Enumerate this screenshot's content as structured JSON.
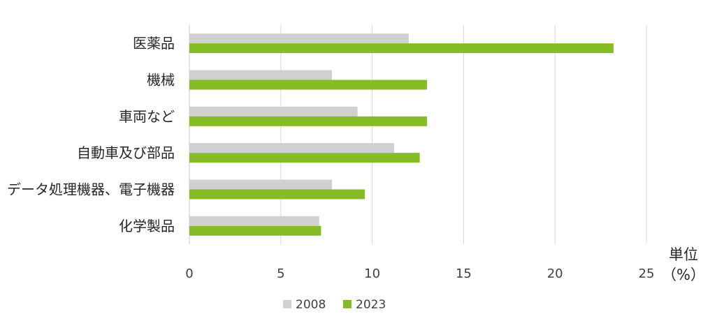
{
  "chart_data": {
    "type": "bar",
    "orientation": "horizontal",
    "title": "",
    "xlabel": "",
    "ylabel": "",
    "unit_label": [
      "単位",
      "（%）"
    ],
    "categories": [
      "医薬品",
      "機械",
      "車両など",
      "自動車及び部品",
      "データ処理機器、電子機器",
      "化学製品"
    ],
    "series": [
      {
        "name": "2008",
        "color": "#d0d0d0",
        "values": [
          12.0,
          7.8,
          9.2,
          11.2,
          7.8,
          7.1
        ]
      },
      {
        "name": "2023",
        "color": "#86bc25",
        "values": [
          23.2,
          13.0,
          13.0,
          12.6,
          9.6,
          7.2
        ]
      }
    ],
    "xlim": [
      0,
      25
    ],
    "xticks": [
      0,
      5,
      10,
      15,
      20,
      25
    ],
    "grid": "vertical",
    "legend": "bottom"
  }
}
